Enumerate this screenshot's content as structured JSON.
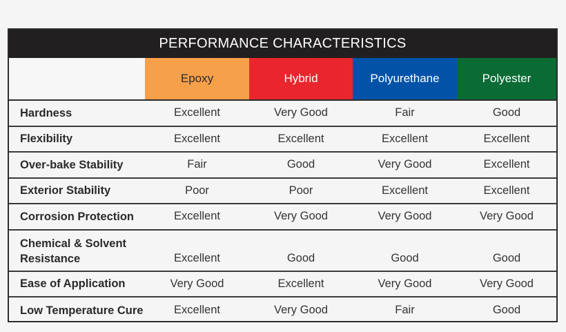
{
  "title": "PERFORMANCE CHARACTERISTICS",
  "columns": [
    {
      "label": "Epoxy",
      "bg": "#f7a04a",
      "fg": "#2a2a2a"
    },
    {
      "label": "Hybrid",
      "bg": "#e9262d",
      "fg": "#ffffff"
    },
    {
      "label": "Polyurethane",
      "bg": "#0253a8",
      "fg": "#ffffff"
    },
    {
      "label": "Polyester",
      "bg": "#0a6b35",
      "fg": "#ffffff"
    }
  ],
  "rows": [
    {
      "label": "Hardness",
      "values": [
        "Excellent",
        "Very Good",
        "Fair",
        "Good"
      ]
    },
    {
      "label": "Flexibility",
      "values": [
        "Excellent",
        "Excellent",
        "Excellent",
        "Excellent"
      ]
    },
    {
      "label": "Over-bake Stability",
      "values": [
        "Fair",
        "Good",
        "Very Good",
        "Excellent"
      ]
    },
    {
      "label": "Exterior Stability",
      "values": [
        "Poor",
        "Poor",
        "Excellent",
        "Excellent"
      ]
    },
    {
      "label": "Corrosion Protection",
      "values": [
        "Excellent",
        "Very Good",
        "Very Good",
        "Very Good"
      ]
    },
    {
      "label": "Chemical & Solvent Resistance",
      "values": [
        "Excellent",
        "Good",
        "Good",
        "Good"
      ]
    },
    {
      "label": "Ease of Application",
      "values": [
        "Very Good",
        "Excellent",
        "Very Good",
        "Very Good"
      ]
    },
    {
      "label": "Low Temperature Cure",
      "values": [
        "Excellent",
        "Very Good",
        "Fair",
        "Good"
      ]
    }
  ]
}
